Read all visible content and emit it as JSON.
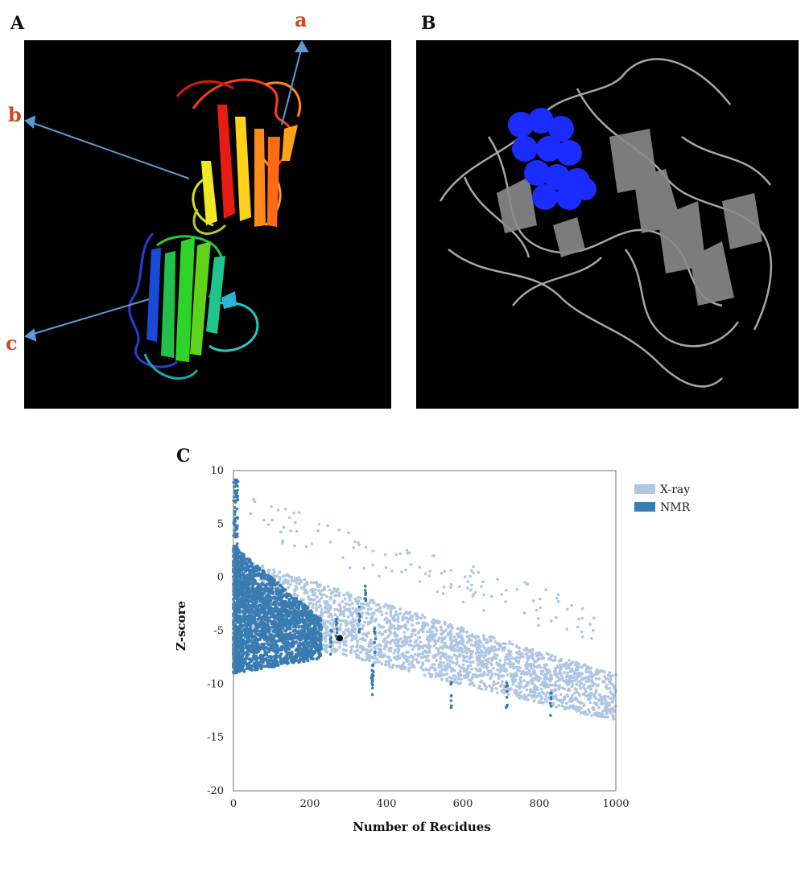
{
  "panels": {
    "a_letter": "A",
    "b_letter": "B",
    "c_letter": "C"
  },
  "panel_a": {
    "callout_a": "a",
    "callout_b": "b",
    "callout_c": "c",
    "callout_color": "#d0471e",
    "arrow_color": "#5b9bd5"
  },
  "panel_b": {
    "ligand_color": "#1a2cff",
    "protein_color": "#b8b8b8"
  },
  "chart_data": {
    "type": "scatter",
    "xlabel": "Number of Recidues",
    "ylabel": "Z-score",
    "xlim": [
      0,
      1000
    ],
    "ylim": [
      -20,
      10
    ],
    "xticks": [
      "0",
      "200",
      "400",
      "600",
      "800",
      "1000"
    ],
    "yticks": [
      "10",
      "5",
      "0",
      "-5",
      "-10",
      "-15",
      "-20"
    ],
    "legend_position": "top-right",
    "series": [
      {
        "name": "X-ray",
        "color": "#aec6e3"
      },
      {
        "name": "NMR",
        "color": "#3a7bb0"
      }
    ],
    "highlight_point": {
      "x": 278,
      "y": -5.7,
      "color": "#111111"
    }
  }
}
